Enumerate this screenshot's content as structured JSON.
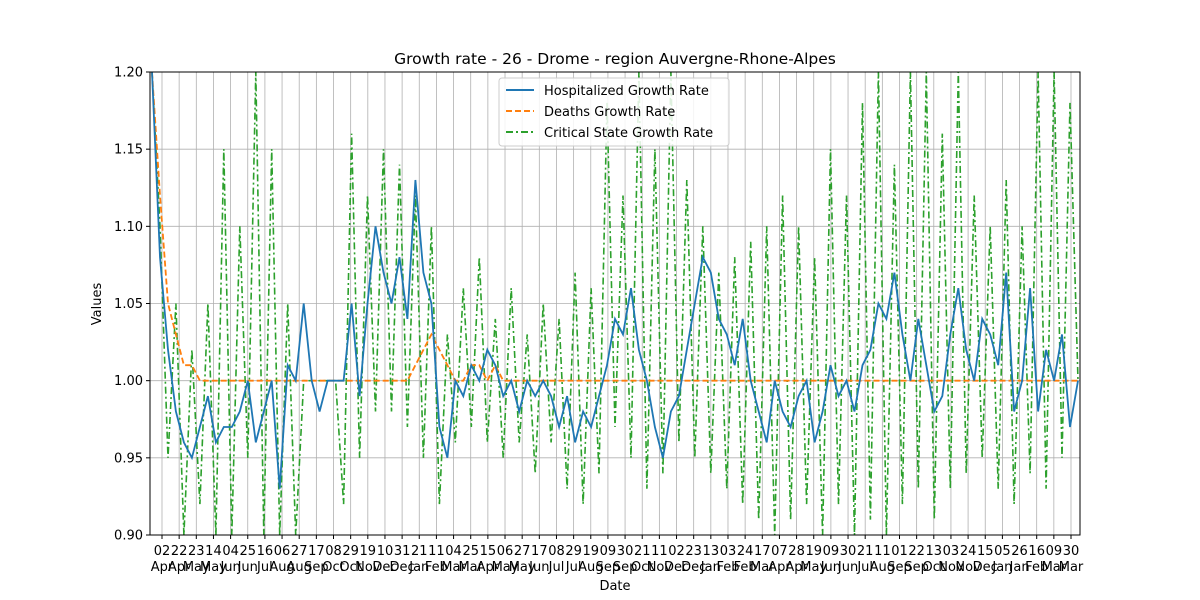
{
  "chart_data": {
    "type": "line",
    "title": "Growth rate - 26 - Drome - region Auvergne-Rhone-Alpes",
    "xlabel": "Date",
    "ylabel": "Values",
    "ylim": [
      0.9,
      1.2
    ],
    "yticks": [
      "0.90",
      "0.95",
      "1.00",
      "1.05",
      "1.10",
      "1.15",
      "1.20"
    ],
    "grid": true,
    "legend_position": "top-center",
    "x_tick_labels": [
      {
        "day": "02",
        "month": "Apr"
      },
      {
        "day": "22",
        "month": "Apr"
      },
      {
        "day": "23",
        "month": "May"
      },
      {
        "day": "14",
        "month": "May"
      },
      {
        "day": "04",
        "month": "Jun"
      },
      {
        "day": "25",
        "month": "Jun"
      },
      {
        "day": "16",
        "month": "Jul"
      },
      {
        "day": "06",
        "month": "Aug"
      },
      {
        "day": "27",
        "month": "Aug"
      },
      {
        "day": "17",
        "month": "Sep"
      },
      {
        "day": "08",
        "month": "Oct"
      },
      {
        "day": "29",
        "month": "Oct"
      },
      {
        "day": "19",
        "month": "Nov"
      },
      {
        "day": "10",
        "month": "Dec"
      },
      {
        "day": "31",
        "month": "Dec"
      },
      {
        "day": "21",
        "month": "Jan"
      },
      {
        "day": "11",
        "month": "Feb"
      },
      {
        "day": "04",
        "month": "Mar"
      },
      {
        "day": "25",
        "month": "Mar"
      },
      {
        "day": "15",
        "month": "Apr"
      },
      {
        "day": "06",
        "month": "May"
      },
      {
        "day": "27",
        "month": "May"
      },
      {
        "day": "17",
        "month": "Jun"
      },
      {
        "day": "08",
        "month": "Jul"
      },
      {
        "day": "29",
        "month": "Jul"
      },
      {
        "day": "19",
        "month": "Aug"
      },
      {
        "day": "09",
        "month": "Sep"
      },
      {
        "day": "30",
        "month": "Sep"
      },
      {
        "day": "21",
        "month": "Oct"
      },
      {
        "day": "11",
        "month": "Nov"
      },
      {
        "day": "02",
        "month": "Dec"
      },
      {
        "day": "23",
        "month": "Dec"
      },
      {
        "day": "13",
        "month": "Jan"
      },
      {
        "day": "03",
        "month": "Feb"
      },
      {
        "day": "24",
        "month": "Feb"
      },
      {
        "day": "17",
        "month": "Mar"
      },
      {
        "day": "07",
        "month": "Apr"
      },
      {
        "day": "28",
        "month": "Apr"
      },
      {
        "day": "19",
        "month": "May"
      },
      {
        "day": "09",
        "month": "Jun"
      },
      {
        "day": "30",
        "month": "Jun"
      },
      {
        "day": "21",
        "month": "Jul"
      },
      {
        "day": "11",
        "month": "Aug"
      },
      {
        "day": "01",
        "month": "Sep"
      },
      {
        "day": "22",
        "month": "Sep"
      },
      {
        "day": "13",
        "month": "Oct"
      },
      {
        "day": "03",
        "month": "Nov"
      },
      {
        "day": "24",
        "month": "Nov"
      },
      {
        "day": "15",
        "month": "Dec"
      },
      {
        "day": "05",
        "month": "Jan"
      },
      {
        "day": "26",
        "month": "Jan"
      },
      {
        "day": "16",
        "month": "Feb"
      },
      {
        "day": "09",
        "month": "Mar"
      },
      {
        "day": "30",
        "month": "Mar"
      }
    ],
    "series": [
      {
        "name": "Hospitalized Growth Rate",
        "color": "#1f77b4",
        "style": "solid",
        "values": [
          1.2,
          1.08,
          1.02,
          0.98,
          0.96,
          0.95,
          0.97,
          0.99,
          0.96,
          0.97,
          0.97,
          0.98,
          1.0,
          0.96,
          0.98,
          1.0,
          0.93,
          1.01,
          1.0,
          1.05,
          1.0,
          0.98,
          1.0,
          1.0,
          1.0,
          1.05,
          0.99,
          1.05,
          1.1,
          1.07,
          1.05,
          1.08,
          1.04,
          1.13,
          1.07,
          1.05,
          0.97,
          0.95,
          1.0,
          0.99,
          1.01,
          1.0,
          1.02,
          1.01,
          0.99,
          1.0,
          0.98,
          1.0,
          0.99,
          1.0,
          0.99,
          0.97,
          0.99,
          0.96,
          0.98,
          0.97,
          0.99,
          1.01,
          1.04,
          1.03,
          1.06,
          1.02,
          1.0,
          0.97,
          0.95,
          0.98,
          0.99,
          1.02,
          1.05,
          1.08,
          1.07,
          1.04,
          1.03,
          1.01,
          1.04,
          1.0,
          0.98,
          0.96,
          1.0,
          0.98,
          0.97,
          0.99,
          1.0,
          0.96,
          0.98,
          1.01,
          0.99,
          1.0,
          0.98,
          1.01,
          1.02,
          1.05,
          1.04,
          1.07,
          1.03,
          1.0,
          1.04,
          1.01,
          0.98,
          0.99,
          1.03,
          1.06,
          1.02,
          1.0,
          1.04,
          1.03,
          1.01,
          1.07,
          0.98,
          1.0,
          1.06,
          0.98,
          1.02,
          1.0,
          1.03,
          0.97,
          1.0
        ]
      },
      {
        "name": "Deaths Growth Rate",
        "color": "#ff7f0e",
        "style": "dashed",
        "values": [
          1.2,
          1.12,
          1.05,
          1.03,
          1.01,
          1.01,
          1.0,
          1.0,
          1.0,
          1.0,
          1.0,
          1.0,
          1.0,
          1.0,
          1.0,
          1.0,
          1.0,
          1.0,
          1.0,
          1.0,
          1.0,
          1.0,
          1.0,
          1.0,
          1.0,
          1.0,
          1.0,
          1.0,
          1.0,
          1.0,
          1.0,
          1.0,
          1.0,
          1.01,
          1.02,
          1.03,
          1.02,
          1.01,
          1.0,
          1.0,
          1.01,
          1.01,
          1.0,
          1.01,
          1.0,
          1.0,
          1.0,
          1.0,
          1.0,
          1.0,
          1.0,
          1.0,
          1.0,
          1.0,
          1.0,
          1.0,
          1.0,
          1.0,
          1.0,
          1.0,
          1.0,
          1.0,
          1.0,
          1.0,
          1.0,
          1.0,
          1.0,
          1.0,
          1.0,
          1.0,
          1.0,
          1.0,
          1.0,
          1.0,
          1.0,
          1.0,
          1.0,
          1.0,
          1.0,
          1.0,
          1.0,
          1.0,
          1.0,
          1.0,
          1.0,
          1.0,
          1.0,
          1.0,
          1.0,
          1.0,
          1.0,
          1.0,
          1.0,
          1.0,
          1.0,
          1.0,
          1.0,
          1.0,
          1.0,
          1.0,
          1.0,
          1.0,
          1.0,
          1.0,
          1.0,
          1.0,
          1.0,
          1.0,
          1.0,
          1.0,
          1.0,
          1.0,
          1.0,
          1.0,
          1.0,
          1.0,
          1.0
        ]
      },
      {
        "name": "Critical State Growth Rate",
        "color": "#2ca02c",
        "style": "dashdot",
        "values": [
          1.2,
          1.1,
          0.95,
          1.05,
          0.9,
          1.02,
          0.92,
          1.05,
          0.9,
          1.15,
          0.9,
          1.1,
          0.95,
          1.2,
          0.9,
          1.15,
          0.9,
          1.05,
          0.9,
          1.0,
          1.0,
          1.0,
          1.0,
          1.0,
          0.92,
          1.16,
          0.95,
          1.12,
          0.98,
          1.15,
          0.98,
          1.14,
          0.97,
          1.12,
          0.95,
          1.1,
          0.92,
          1.03,
          0.96,
          1.06,
          0.97,
          1.08,
          0.96,
          1.04,
          0.95,
          1.06,
          0.96,
          1.03,
          0.94,
          1.05,
          0.96,
          1.04,
          0.93,
          1.07,
          0.92,
          1.06,
          0.94,
          1.18,
          0.97,
          1.12,
          0.95,
          1.2,
          0.93,
          1.15,
          0.94,
          1.2,
          0.96,
          1.13,
          0.95,
          1.1,
          0.94,
          1.07,
          0.93,
          1.08,
          0.92,
          1.09,
          0.91,
          1.1,
          0.9,
          1.12,
          0.91,
          1.1,
          0.92,
          1.08,
          0.9,
          1.15,
          0.92,
          1.12,
          0.9,
          1.18,
          0.91,
          1.2,
          0.9,
          1.14,
          0.92,
          1.2,
          0.93,
          1.2,
          0.91,
          1.16,
          0.93,
          1.2,
          0.94,
          1.12,
          0.95,
          1.1,
          0.93,
          1.13,
          0.92,
          1.1,
          0.94,
          1.2,
          0.93,
          1.2,
          0.95,
          1.18,
          1.0
        ]
      }
    ]
  }
}
